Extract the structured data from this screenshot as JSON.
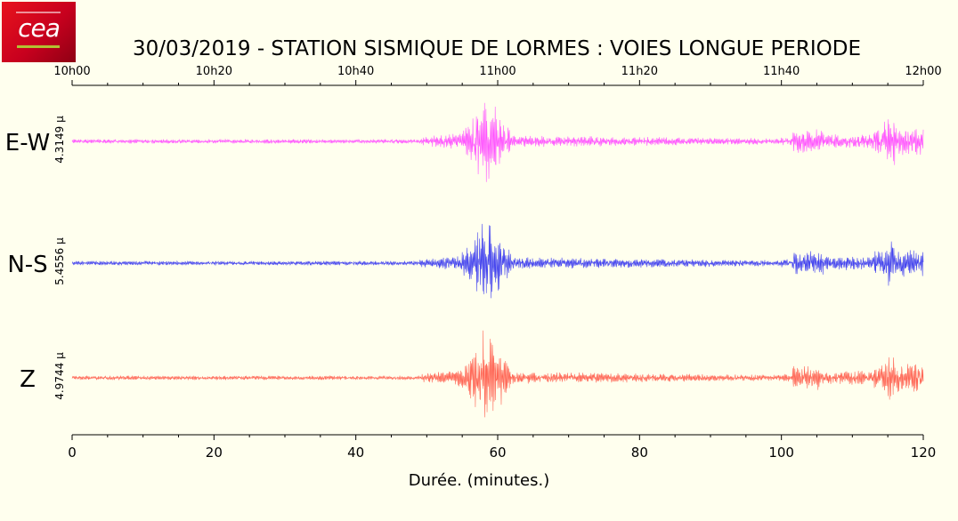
{
  "logo": {
    "text": "cea"
  },
  "chart_data": {
    "type": "line",
    "title": "30/03/2019  -  STATION SISMIQUE DE LORMES : VOIES LONGUE PERIODE",
    "xlabel": "Durée.  (minutes.)",
    "xlim": [
      0,
      120
    ],
    "bottom_ticks": [
      0,
      20,
      40,
      60,
      80,
      100,
      120
    ],
    "top_ticks": [
      "10h00",
      "10h20",
      "10h40",
      "11h00",
      "11h20",
      "11h40",
      "12h00"
    ],
    "grid": false,
    "series": [
      {
        "name": "E-W",
        "amplitude_label": "4.3149 µ",
        "color": "#ff55ff",
        "seed": 11
      },
      {
        "name": "N-S",
        "amplitude_label": "5.4556 µ",
        "color": "#4444ee",
        "seed": 23
      },
      {
        "name": "Z",
        "amplitude_label": "4.9744 µ",
        "color": "#ff6655",
        "seed": 37
      }
    ]
  }
}
